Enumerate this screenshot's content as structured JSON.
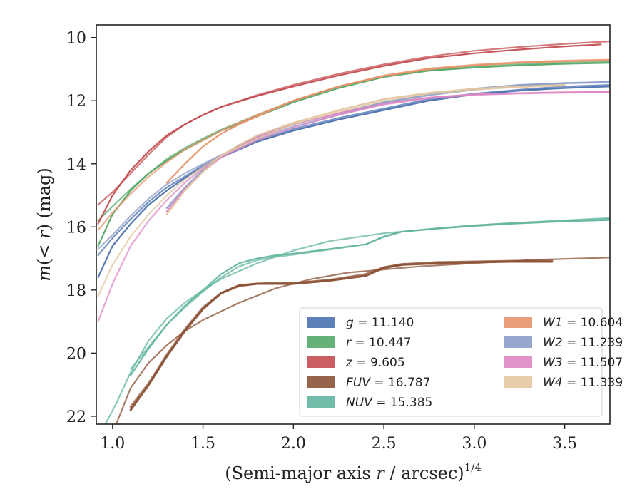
{
  "chart_data": {
    "type": "line",
    "xlabel": "(Semi-major axis r / arcsec)^1/4",
    "ylabel": "m(< r) (mag)",
    "xlim": [
      0.91,
      3.75
    ],
    "ylim": [
      22.25,
      9.6
    ],
    "y_inverted": true,
    "grid": false,
    "legend_placement": "lower-right",
    "xticks": [
      1.0,
      1.5,
      2.0,
      2.5,
      3.0,
      3.5
    ],
    "xtick_labels": [
      "1.0",
      "1.5",
      "2.0",
      "2.5",
      "3.0",
      "3.5"
    ],
    "yticks": [
      10,
      12,
      14,
      16,
      18,
      20,
      22
    ],
    "ytick_labels": [
      "10",
      "12",
      "14",
      "16",
      "18",
      "20",
      "22"
    ],
    "series": [
      {
        "name": "g = 11.140",
        "legend_italic": "g",
        "legend_value": "= 11.140",
        "color": "#4c72b0",
        "lines": [
          {
            "x": [
              0.92,
              1.0,
              1.1,
              1.2,
              1.3,
              1.4,
              1.5,
              1.6,
              1.8,
              2.0,
              2.25,
              2.5,
              2.75,
              3.0,
              3.25,
              3.5,
              3.75
            ],
            "y": [
              17.6,
              16.6,
              15.9,
              15.3,
              14.85,
              14.45,
              14.1,
              13.8,
              13.3,
              12.95,
              12.6,
              12.3,
              12.0,
              11.8,
              11.68,
              11.6,
              11.55
            ]
          },
          {
            "x": [
              0.92,
              1.0,
              1.1,
              1.2,
              1.3,
              1.4,
              1.5,
              1.6,
              1.8,
              2.0,
              2.25,
              2.5,
              2.75,
              3.0,
              3.25,
              3.5,
              3.75
            ],
            "y": [
              16.9,
              16.35,
              15.75,
              15.2,
              14.75,
              14.4,
              14.05,
              13.75,
              13.25,
              12.9,
              12.55,
              12.25,
              11.95,
              11.78,
              11.65,
              11.55,
              11.5
            ]
          }
        ]
      },
      {
        "name": "r = 10.447",
        "legend_italic": "r",
        "legend_value": "= 10.447",
        "color": "#55a868",
        "lines": [
          {
            "x": [
              0.92,
              1.0,
              1.1,
              1.2,
              1.3,
              1.4,
              1.5,
              1.6,
              1.8,
              2.0,
              2.25,
              2.5,
              2.75,
              3.0,
              3.25,
              3.5,
              3.75
            ],
            "y": [
              16.6,
              15.6,
              14.85,
              14.3,
              13.9,
              13.55,
              13.25,
              12.95,
              12.5,
              12.05,
              11.6,
              11.25,
              11.05,
              10.95,
              10.88,
              10.83,
              10.8
            ]
          },
          {
            "x": [
              0.92,
              1.0,
              1.1,
              1.2,
              1.3,
              1.4,
              1.5,
              1.6,
              1.8,
              2.0,
              2.25,
              2.5,
              2.75,
              3.0,
              3.25,
              3.5,
              3.75
            ],
            "y": [
              15.8,
              15.35,
              14.8,
              14.3,
              13.85,
              13.5,
              13.2,
              12.92,
              12.45,
              12.0,
              11.55,
              11.22,
              11.02,
              10.92,
              10.85,
              10.8,
              10.77
            ]
          }
        ]
      },
      {
        "name": "z = 9.605",
        "legend_italic": "z",
        "legend_value": "= 9.605",
        "color": "#c44e52",
        "lines": [
          {
            "x": [
              0.92,
              1.0,
              1.1,
              1.2,
              1.3,
              1.4,
              1.5,
              1.6,
              1.8,
              2.0,
              2.25,
              2.5,
              2.75,
              3.0,
              3.25,
              3.5,
              3.7
            ],
            "y": [
              15.9,
              15.0,
              14.2,
              13.6,
              13.1,
              12.75,
              12.45,
              12.2,
              11.85,
              11.55,
              11.2,
              10.9,
              10.65,
              10.5,
              10.38,
              10.28,
              10.22
            ]
          },
          {
            "x": [
              0.92,
              1.0,
              1.1,
              1.2,
              1.3,
              1.4,
              1.5,
              1.6,
              1.8,
              2.0,
              2.25,
              2.5,
              2.75,
              3.0,
              3.25,
              3.5,
              3.75
            ],
            "y": [
              15.3,
              14.9,
              14.3,
              13.7,
              13.15,
              12.75,
              12.45,
              12.2,
              11.82,
              11.5,
              11.15,
              10.85,
              10.6,
              10.42,
              10.3,
              10.2,
              10.12
            ]
          }
        ]
      },
      {
        "name": "FUV = 16.787",
        "legend_italic": "FUV",
        "legend_value": "= 16.787",
        "color": "#8c5236",
        "lines": [
          {
            "x": [
              1.1,
              1.2,
              1.3,
              1.4,
              1.5,
              1.6,
              1.7,
              1.8,
              1.9,
              2.0,
              2.2,
              2.4,
              2.5,
              2.6,
              2.8,
              3.0,
              3.2,
              3.43
            ],
            "y": [
              21.8,
              21.0,
              20.1,
              19.3,
              18.6,
              18.1,
              17.85,
              17.8,
              17.8,
              17.8,
              17.7,
              17.55,
              17.3,
              17.2,
              17.15,
              17.12,
              17.1,
              17.1
            ]
          },
          {
            "x": [
              1.1,
              1.2,
              1.3,
              1.4,
              1.5,
              1.6,
              1.7,
              1.8,
              1.9,
              2.0,
              2.2,
              2.4,
              2.5,
              2.6,
              2.8,
              3.0,
              3.2,
              3.43
            ],
            "y": [
              21.7,
              20.95,
              20.05,
              19.25,
              18.55,
              18.1,
              17.87,
              17.8,
              17.78,
              17.78,
              17.68,
              17.5,
              17.28,
              17.18,
              17.12,
              17.1,
              17.08,
              17.07
            ]
          },
          {
            "x": [
              1.02,
              1.1,
              1.2,
              1.3,
              1.4,
              1.5,
              1.7,
              1.9,
              2.1,
              2.3,
              2.5,
              2.7,
              3.0,
              3.3,
              3.75
            ],
            "y": [
              22.25,
              21.1,
              20.3,
              19.75,
              19.3,
              18.95,
              18.4,
              17.95,
              17.65,
              17.45,
              17.35,
              17.25,
              17.15,
              17.05,
              16.97
            ]
          }
        ]
      },
      {
        "name": "NUV = 15.385",
        "legend_italic": "NUV",
        "legend_value": "= 15.385",
        "color": "#64b5a0",
        "lines": [
          {
            "x": [
              1.1,
              1.2,
              1.3,
              1.4,
              1.5,
              1.6,
              1.7,
              1.8,
              1.9,
              2.0,
              2.2,
              2.4,
              2.5,
              2.6,
              2.8,
              3.0,
              3.2,
              3.5,
              3.75
            ],
            "y": [
              20.7,
              19.85,
              19.1,
              18.5,
              18.0,
              17.5,
              17.15,
              17.0,
              16.9,
              16.85,
              16.7,
              16.55,
              16.3,
              16.15,
              16.05,
              15.97,
              15.9,
              15.82,
              15.78
            ]
          },
          {
            "x": [
              1.1,
              1.2,
              1.3,
              1.4,
              1.5,
              1.6,
              1.7,
              1.8,
              1.9,
              2.0,
              2.2,
              2.4,
              2.5,
              2.6,
              2.8,
              3.0,
              3.2,
              3.5,
              3.75
            ],
            "y": [
              20.5,
              19.8,
              19.1,
              18.55,
              18.05,
              17.6,
              17.25,
              17.05,
              16.95,
              16.88,
              16.72,
              16.55,
              16.32,
              16.15,
              16.04,
              15.95,
              15.88,
              15.8,
              15.75
            ]
          },
          {
            "x": [
              0.96,
              1.02,
              1.1,
              1.2,
              1.3,
              1.4,
              1.5,
              1.6,
              1.8,
              2.0,
              2.2,
              2.5,
              2.8,
              3.0,
              3.3,
              3.75
            ],
            "y": [
              22.25,
              21.6,
              20.6,
              19.6,
              18.9,
              18.4,
              18.0,
              17.65,
              17.15,
              16.75,
              16.45,
              16.2,
              16.05,
              15.95,
              15.85,
              15.72
            ]
          }
        ]
      },
      {
        "name": "W1 = 10.604",
        "legend_italic": "W1",
        "legend_value": "= 10.604",
        "color": "#e8926a",
        "lines": [
          {
            "x": [
              1.3,
              1.4,
              1.5,
              1.6,
              1.7,
              1.8,
              2.0,
              2.25,
              2.5,
              2.75,
              3.0,
              3.25,
              3.5,
              3.75
            ],
            "y": [
              14.6,
              14.0,
              13.45,
              13.05,
              12.75,
              12.5,
              12.0,
              11.55,
              11.22,
              11.0,
              10.88,
              10.8,
              10.75,
              10.72
            ]
          },
          {
            "x": [
              0.92,
              1.0,
              1.1,
              1.2,
              1.3,
              1.4,
              1.5,
              1.6,
              1.8,
              2.0,
              2.25,
              2.5,
              2.75,
              3.0,
              3.25,
              3.5,
              3.75
            ],
            "y": [
              16.1,
              15.55,
              14.95,
              14.4,
              13.95,
              13.55,
              13.25,
              12.95,
              12.45,
              12.0,
              11.55,
              11.2,
              10.98,
              10.86,
              10.78,
              10.73,
              10.7
            ]
          }
        ]
      },
      {
        "name": "W2 = 11.239",
        "legend_italic": "W2",
        "legend_value": "= 11.239",
        "color": "#8c9ec9",
        "lines": [
          {
            "x": [
              1.3,
              1.4,
              1.5,
              1.6,
              1.7,
              1.8,
              2.0,
              2.25,
              2.5,
              2.75,
              3.0,
              3.25,
              3.5,
              3.75
            ],
            "y": [
              15.4,
              14.75,
              14.2,
              13.75,
              13.4,
              13.15,
              12.75,
              12.4,
              12.05,
              11.8,
              11.62,
              11.5,
              11.44,
              11.4
            ]
          },
          {
            "x": [
              0.92,
              1.0,
              1.1,
              1.2,
              1.3,
              1.4,
              1.5,
              1.6,
              1.8,
              2.0,
              2.25,
              2.5,
              2.75,
              3.0,
              3.25,
              3.5,
              3.75
            ],
            "y": [
              16.7,
              16.25,
              15.65,
              15.1,
              14.65,
              14.3,
              14.0,
              13.72,
              13.2,
              12.82,
              12.45,
              12.1,
              11.83,
              11.65,
              11.52,
              11.45,
              11.42
            ]
          }
        ]
      },
      {
        "name": "W3 = 11.507",
        "legend_italic": "W3",
        "legend_value": "= 11.507",
        "color": "#dd88c4",
        "lines": [
          {
            "x": [
              1.3,
              1.4,
              1.5,
              1.6,
              1.7,
              1.8,
              2.0,
              2.25,
              2.5,
              2.75,
              3.0,
              3.25,
              3.5,
              3.75
            ],
            "y": [
              15.5,
              14.8,
              14.25,
              13.8,
              13.45,
              13.15,
              12.75,
              12.4,
              12.1,
              11.9,
              11.8,
              11.76,
              11.73,
              11.72
            ]
          },
          {
            "x": [
              0.92,
              1.0,
              1.1,
              1.2,
              1.3,
              1.4,
              1.5,
              1.6,
              1.8,
              2.0,
              2.25,
              2.5,
              2.75,
              3.0,
              3.25,
              3.5,
              3.75
            ],
            "y": [
              19.0,
              17.8,
              16.6,
              15.8,
              15.15,
              14.6,
              14.15,
              13.8,
              13.25,
              12.85,
              12.45,
              12.12,
              11.92,
              11.82,
              11.77,
              11.75,
              11.74
            ]
          }
        ]
      },
      {
        "name": "W4 = 11.339",
        "legend_italic": "W4",
        "legend_value": "= 11.339",
        "color": "#e3c6a0",
        "lines": [
          {
            "x": [
              1.3,
              1.4,
              1.5,
              1.6,
              1.7,
              1.8,
              2.0,
              2.25,
              2.5,
              2.75,
              3.0,
              3.25,
              3.5
            ],
            "y": [
              15.6,
              14.85,
              14.25,
              13.75,
              13.4,
              13.1,
              12.7,
              12.3,
              11.95,
              11.75,
              11.62,
              11.55,
              11.5
            ]
          },
          {
            "x": [
              0.92,
              1.0,
              1.1,
              1.2,
              1.3,
              1.4,
              1.5,
              1.6,
              1.8,
              2.0,
              2.25,
              2.5,
              2.75,
              3.0,
              3.25,
              3.5
            ],
            "y": [
              18.2,
              17.2,
              16.3,
              15.6,
              15.0,
              14.5,
              14.1,
              13.75,
              13.2,
              12.75,
              12.35,
              12.0,
              11.78,
              11.65,
              11.57,
              11.52
            ]
          }
        ]
      }
    ]
  }
}
